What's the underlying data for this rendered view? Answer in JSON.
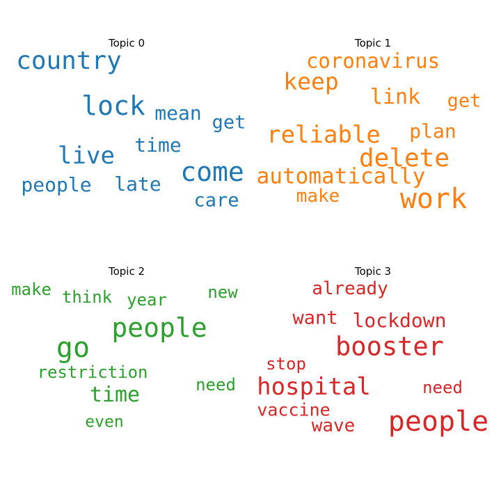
{
  "chart_data": [
    {
      "type": "wordcloud",
      "title": "Topic 0",
      "color": "#1f77b4",
      "words": [
        {
          "text": "country",
          "weight": 0.9
        },
        {
          "text": "lock",
          "weight": 0.95
        },
        {
          "text": "come",
          "weight": 1.0
        },
        {
          "text": "live",
          "weight": 0.8
        },
        {
          "text": "mean",
          "weight": 0.6
        },
        {
          "text": "get",
          "weight": 0.58
        },
        {
          "text": "time",
          "weight": 0.64
        },
        {
          "text": "people",
          "weight": 0.64
        },
        {
          "text": "late",
          "weight": 0.62
        },
        {
          "text": "care",
          "weight": 0.58
        }
      ]
    },
    {
      "type": "wordcloud",
      "title": "Topic 1",
      "color": "#ff7f0e",
      "words": [
        {
          "text": "coronavirus",
          "weight": 0.7
        },
        {
          "text": "keep",
          "weight": 0.78
        },
        {
          "text": "link",
          "weight": 0.7
        },
        {
          "text": "get",
          "weight": 0.6
        },
        {
          "text": "reliable",
          "weight": 0.8
        },
        {
          "text": "plan",
          "weight": 0.62
        },
        {
          "text": "delete",
          "weight": 0.88
        },
        {
          "text": "automatically",
          "weight": 0.72
        },
        {
          "text": "work",
          "weight": 1.0
        },
        {
          "text": "make",
          "weight": 0.58
        }
      ]
    },
    {
      "type": "wordcloud",
      "title": "Topic 2",
      "color": "#2ca02c",
      "words": [
        {
          "text": "make",
          "weight": 0.58
        },
        {
          "text": "think",
          "weight": 0.58
        },
        {
          "text": "year",
          "weight": 0.58
        },
        {
          "text": "new",
          "weight": 0.58
        },
        {
          "text": "people",
          "weight": 0.95
        },
        {
          "text": "go",
          "weight": 1.0
        },
        {
          "text": "restriction",
          "weight": 0.62
        },
        {
          "text": "time",
          "weight": 0.72
        },
        {
          "text": "need",
          "weight": 0.58
        },
        {
          "text": "even",
          "weight": 0.56
        }
      ]
    },
    {
      "type": "wordcloud",
      "title": "Topic 3",
      "color": "#d62728",
      "words": [
        {
          "text": "already",
          "weight": 0.65
        },
        {
          "text": "want",
          "weight": 0.66
        },
        {
          "text": "lockdown",
          "weight": 0.7
        },
        {
          "text": "booster",
          "weight": 0.95
        },
        {
          "text": "stop",
          "weight": 0.58
        },
        {
          "text": "hospital",
          "weight": 0.88
        },
        {
          "text": "need",
          "weight": 0.58
        },
        {
          "text": "vaccine",
          "weight": 0.62
        },
        {
          "text": "wave",
          "weight": 0.62
        },
        {
          "text": "people",
          "weight": 1.0
        }
      ]
    }
  ]
}
